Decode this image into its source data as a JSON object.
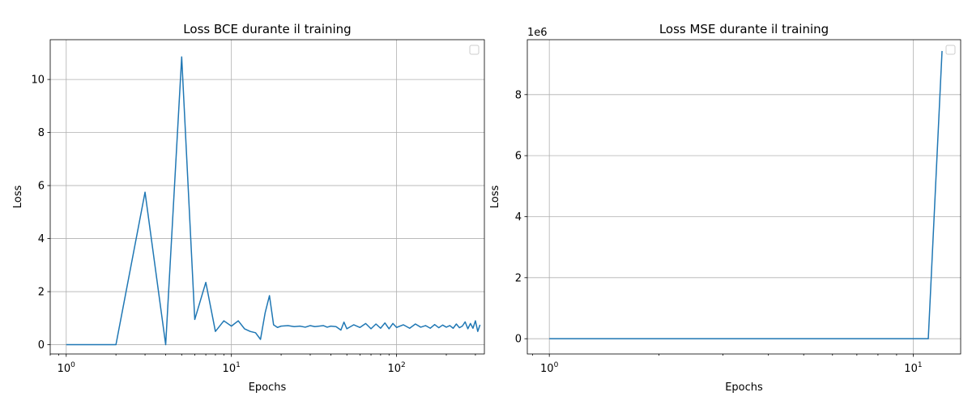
{
  "chart_data": [
    {
      "type": "line",
      "title": "Loss BCE durante il training",
      "xlabel": "Epochs",
      "ylabel": "Loss",
      "xscale": "log",
      "xlim": [
        0.8,
        340
      ],
      "ylim": [
        -0.35,
        11.5
      ],
      "xticks": [
        {
          "value": 1,
          "base": "10",
          "exp": "0"
        },
        {
          "value": 10,
          "base": "10",
          "exp": "1"
        },
        {
          "value": 100,
          "base": "10",
          "exp": "2"
        }
      ],
      "yticks": [
        "0",
        "2",
        "4",
        "6",
        "8",
        "10"
      ],
      "grid": true,
      "legend": "upper right (empty)",
      "offset_text": "",
      "color": "#1f77b4",
      "series": [
        {
          "x": [
            1,
            2,
            3,
            4,
            5,
            6,
            7,
            8,
            9,
            10,
            11,
            12,
            13,
            14,
            15,
            16,
            17,
            18,
            19,
            20,
            22,
            24,
            26,
            28,
            30,
            32,
            34,
            36,
            38,
            40,
            43,
            46,
            48,
            50,
            55,
            60,
            65,
            70,
            75,
            80,
            85,
            90,
            95,
            100,
            110,
            120,
            130,
            140,
            150,
            160,
            170,
            180,
            190,
            200,
            210,
            220,
            230,
            240,
            250,
            260,
            270,
            280,
            290,
            300,
            310,
            320
          ],
          "y": [
            0.0,
            0.0,
            5.75,
            0.0,
            10.85,
            0.95,
            2.35,
            0.5,
            0.9,
            0.7,
            0.9,
            0.6,
            0.5,
            0.45,
            0.2,
            1.2,
            1.85,
            0.75,
            0.65,
            0.7,
            0.72,
            0.68,
            0.7,
            0.66,
            0.72,
            0.68,
            0.7,
            0.72,
            0.66,
            0.7,
            0.68,
            0.55,
            0.85,
            0.6,
            0.75,
            0.65,
            0.8,
            0.6,
            0.78,
            0.62,
            0.82,
            0.6,
            0.8,
            0.65,
            0.75,
            0.62,
            0.78,
            0.66,
            0.72,
            0.62,
            0.76,
            0.64,
            0.74,
            0.66,
            0.72,
            0.62,
            0.78,
            0.64,
            0.7,
            0.86,
            0.6,
            0.8,
            0.62,
            0.9,
            0.5,
            0.75
          ]
        }
      ]
    },
    {
      "type": "line",
      "title": "Loss MSE durante il training",
      "xlabel": "Epochs",
      "ylabel": "Loss",
      "xscale": "log",
      "xlim": [
        0.87,
        13.5
      ],
      "ylim": [
        -500000,
        9800000
      ],
      "xticks": [
        {
          "value": 1,
          "base": "10",
          "exp": "0"
        },
        {
          "value": 10,
          "base": "10",
          "exp": "1"
        }
      ],
      "yticks": [
        "0",
        "2",
        "4",
        "6",
        "8"
      ],
      "grid": true,
      "legend": "upper right (empty)",
      "offset_text": "1e6",
      "color": "#1f77b4",
      "series": [
        {
          "x": [
            1,
            2,
            3,
            4,
            5,
            6,
            7,
            8,
            9,
            10,
            11,
            12
          ],
          "y": [
            0,
            0,
            0,
            0,
            0,
            0,
            0,
            0,
            0,
            0,
            0,
            9430000
          ]
        }
      ]
    }
  ]
}
